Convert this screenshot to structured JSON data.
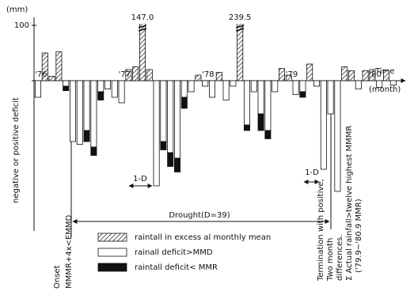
{
  "chart_data": {
    "type": "bar",
    "y_unit": "(mm)",
    "y_axis_label": "negative or positive deficit",
    "x_axis_label": [
      "Time",
      "(month)"
    ],
    "categories": [
      "'76",
      null,
      null,
      null,
      null,
      null,
      null,
      null,
      null,
      null,
      null,
      null,
      "'77",
      null,
      null,
      null,
      null,
      null,
      null,
      null,
      null,
      null,
      null,
      null,
      "'78",
      null,
      null,
      null,
      null,
      null,
      null,
      null,
      null,
      null,
      null,
      null,
      "'79",
      null,
      null,
      null,
      null,
      null,
      null,
      null,
      null,
      null,
      null,
      null,
      "'80",
      null,
      null,
      null
    ],
    "series": [
      {
        "name": "raintall in excess al monthly mean",
        "color": "#333333",
        "pattern": "hatch",
        "values": [
          null,
          50,
          8,
          52,
          null,
          null,
          null,
          null,
          null,
          null,
          null,
          null,
          null,
          20,
          25,
          147,
          20,
          null,
          null,
          null,
          null,
          null,
          null,
          10,
          null,
          null,
          15,
          null,
          null,
          239.5,
          null,
          null,
          null,
          null,
          null,
          22,
          10,
          null,
          null,
          30,
          null,
          null,
          null,
          null,
          25,
          18,
          null,
          18,
          20,
          null,
          18,
          null
        ],
        "value_labels": [
          null,
          null,
          null,
          null,
          null,
          null,
          null,
          null,
          null,
          null,
          null,
          null,
          null,
          null,
          null,
          "147.0",
          null,
          null,
          null,
          null,
          null,
          null,
          null,
          null,
          null,
          null,
          null,
          null,
          null,
          "239.5",
          null,
          null,
          null,
          null,
          null,
          null,
          null,
          null,
          null,
          null,
          null,
          null,
          null,
          null,
          null,
          null,
          null,
          null,
          null,
          null,
          null,
          null
        ]
      },
      {
        "name": "rainall deficit>MMD",
        "color": "#ffffff",
        "values": [
          -30,
          null,
          null,
          null,
          -10,
          -110,
          -115,
          -90,
          -120,
          -20,
          -15,
          -30,
          -40,
          null,
          null,
          null,
          null,
          -190,
          -110,
          -130,
          -140,
          -30,
          -20,
          null,
          -10,
          -30,
          null,
          -35,
          -10,
          null,
          -80,
          -20,
          -60,
          -90,
          -20,
          null,
          null,
          -25,
          -20,
          null,
          -10,
          -160,
          -60,
          -200,
          null,
          null,
          -15,
          null,
          null,
          -12,
          null,
          -8
        ]
      },
      {
        "name": "raintall deficit< MMR",
        "color": "#111111",
        "values": [
          null,
          null,
          null,
          null,
          -8,
          null,
          null,
          -20,
          -15,
          -15,
          null,
          null,
          null,
          null,
          null,
          null,
          null,
          null,
          -15,
          -25,
          -25,
          -20,
          null,
          null,
          null,
          null,
          null,
          null,
          null,
          null,
          -10,
          null,
          -30,
          -15,
          null,
          null,
          null,
          null,
          -10,
          null,
          null,
          null,
          null,
          null,
          null,
          null,
          null,
          null,
          null,
          null,
          null,
          null
        ]
      }
    ],
    "ylim": [
      -210,
      110
    ],
    "yticks": [
      100
    ],
    "annotations": {
      "drought": "Drought(D=39)",
      "one_d": [
        "1-D",
        "1-D"
      ],
      "onset": [
        "Onset",
        "MMMR+4x<EMMD"
      ],
      "termination": [
        "Termination with positive,",
        "Two month",
        "differences."
      ],
      "sum": [
        "Σ Actual rainfall>twelve highest MMMR",
        "('79.9~'80.9 MMR)"
      ]
    }
  }
}
